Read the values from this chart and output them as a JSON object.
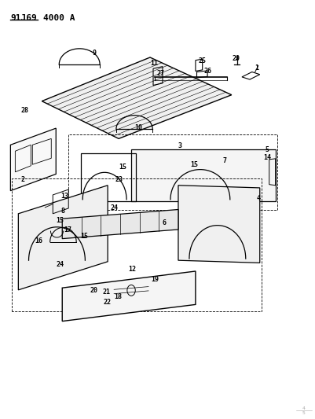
{
  "title_part1": "91J69",
  "title_part2": "4000 A",
  "bg_color": "#ffffff",
  "line_color": "#000000",
  "fig_width": 4.02,
  "fig_height": 5.33,
  "dpi": 100
}
